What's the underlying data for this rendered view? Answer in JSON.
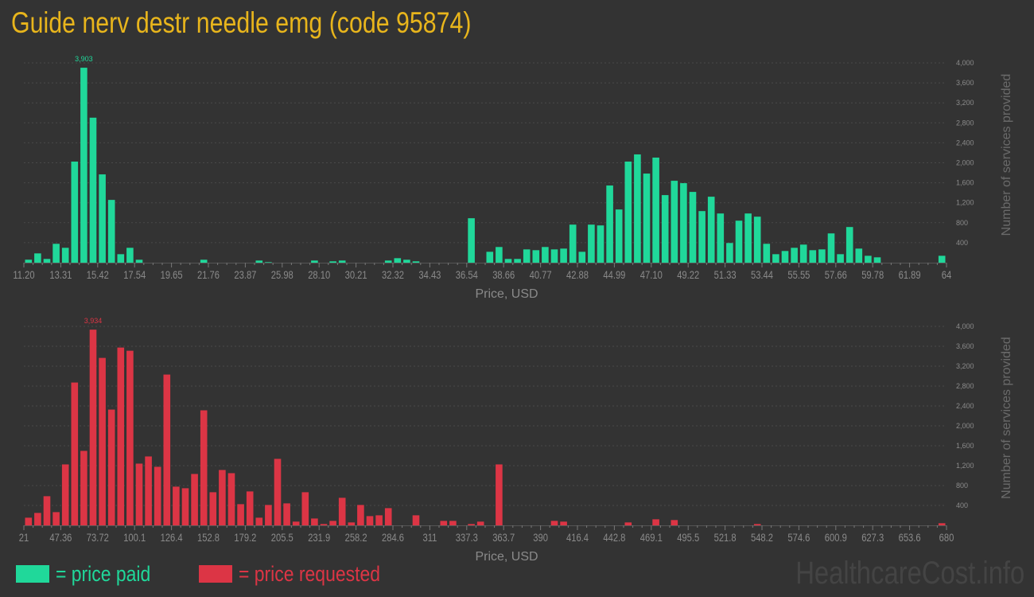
{
  "title": "Guide nerv destr needle emg (code 95874)",
  "colors": {
    "background": "#333333",
    "paid": "#20d89a",
    "requested": "#dc3545",
    "title": "#e8b51c"
  },
  "legend": {
    "paid_label": "= price paid",
    "requested_label": "= price requested"
  },
  "brand": "HealthcareCost.info",
  "chart_data": [
    {
      "type": "bar",
      "series_name": "price paid",
      "xlabel": "Price, USD",
      "ylabel": "Number of services provided",
      "xlim": [
        11.2,
        64
      ],
      "ylim": [
        0,
        4000
      ],
      "grid": true,
      "peak_label": "3,903",
      "x_tick_labels": [
        "11.20",
        "13.31",
        "15.42",
        "17.54",
        "19.65",
        "21.76",
        "23.87",
        "25.98",
        "28.10",
        "30.21",
        "32.32",
        "34.43",
        "36.54",
        "38.66",
        "40.77",
        "42.88",
        "44.99",
        "47.10",
        "49.22",
        "51.33",
        "53.44",
        "55.55",
        "57.66",
        "59.78",
        "61.89",
        "64"
      ],
      "y_tick_labels": [
        "400",
        "800",
        "1,200",
        "1,600",
        "2,000",
        "2,400",
        "2,800",
        "3,200",
        "3,600",
        "4,000"
      ],
      "values": [
        60,
        186,
        75,
        378,
        298,
        2024,
        3903,
        2903,
        1768,
        1257,
        170,
        298,
        59,
        0,
        0,
        0,
        0,
        0,
        0,
        59,
        0,
        0,
        0,
        0,
        0,
        43,
        11,
        0,
        0,
        0,
        0,
        43,
        0,
        27,
        43,
        0,
        0,
        0,
        0,
        43,
        90,
        59,
        27,
        0,
        0,
        0,
        0,
        0,
        890,
        0,
        218,
        314,
        75,
        75,
        266,
        250,
        314,
        266,
        282,
        762,
        218,
        762,
        746,
        1545,
        1065,
        2024,
        2168,
        1784,
        2104,
        1353,
        1640,
        1592,
        1417,
        1033,
        1321,
        985,
        394,
        841,
        985,
        921,
        378,
        170,
        234,
        298,
        362,
        250,
        266,
        586,
        170,
        714,
        282,
        138,
        107,
        0,
        0,
        0,
        0,
        0,
        0,
        138
      ]
    },
    {
      "type": "bar",
      "series_name": "price requested",
      "xlabel": "Price, USD",
      "ylabel": "Number of services provided",
      "xlim": [
        21,
        680
      ],
      "ylim": [
        0,
        4000
      ],
      "grid": true,
      "peak_label": "3,934",
      "x_tick_labels": [
        "21",
        "47.36",
        "73.72",
        "100.1",
        "126.4",
        "152.8",
        "179.2",
        "205.5",
        "231.9",
        "258.2",
        "284.6",
        "311",
        "337.3",
        "363.7",
        "390",
        "416.4",
        "442.8",
        "469.1",
        "495.5",
        "521.8",
        "548.2",
        "574.6",
        "600.9",
        "627.3",
        "653.6",
        "680"
      ],
      "y_tick_labels": [
        "400",
        "800",
        "1,200",
        "1,600",
        "2,000",
        "2,400",
        "2,800",
        "3,200",
        "3,600",
        "4,000"
      ],
      "values": [
        154,
        250,
        586,
        266,
        1225,
        2871,
        1497,
        3934,
        3366,
        2327,
        3574,
        3510,
        1241,
        1385,
        1177,
        3031,
        778,
        746,
        1033,
        2312,
        666,
        1113,
        1049,
        426,
        682,
        154,
        410,
        1337,
        442,
        75,
        666,
        138,
        27,
        90,
        554,
        59,
        410,
        186,
        202,
        346,
        0,
        0,
        202,
        0,
        0,
        90,
        90,
        0,
        27,
        75,
        0,
        1225,
        0,
        0,
        0,
        0,
        0,
        90,
        75,
        0,
        0,
        0,
        0,
        0,
        0,
        59,
        0,
        0,
        122,
        0,
        107,
        0,
        0,
        0,
        0,
        0,
        0,
        0,
        0,
        27,
        0,
        0,
        0,
        0,
        0,
        0,
        0,
        0,
        0,
        0,
        0,
        0,
        0,
        0,
        0,
        0,
        0,
        0,
        0,
        43
      ]
    }
  ]
}
